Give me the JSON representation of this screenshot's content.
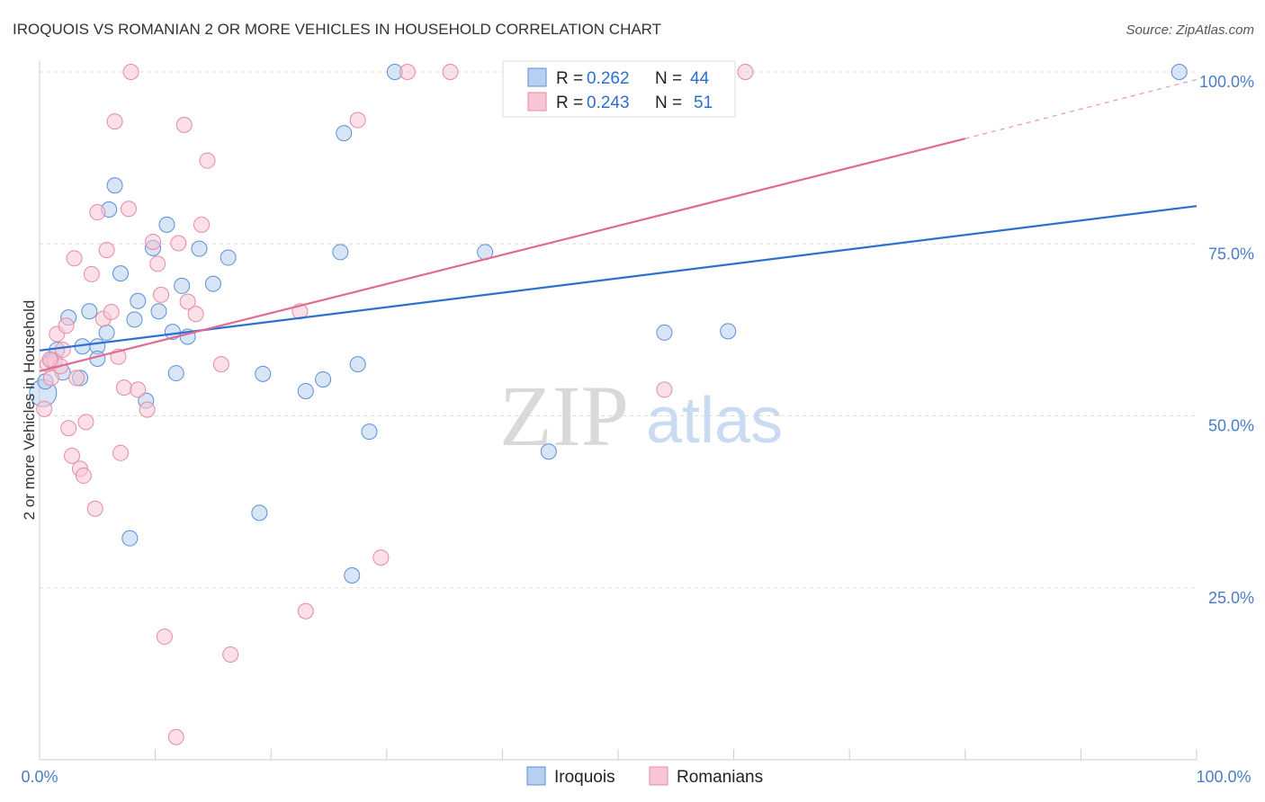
{
  "chart_data": {
    "type": "scatter",
    "title": "IROQUOIS VS ROMANIAN 2 OR MORE VEHICLES IN HOUSEHOLD CORRELATION CHART",
    "source": "Source: ZipAtlas.com",
    "xlabel": "",
    "ylabel": "2 or more Vehicles in Household",
    "xlim": [
      0,
      100
    ],
    "ylim": [
      0,
      104
    ],
    "x_tick_labels": [
      "0.0%",
      "100.0%"
    ],
    "y_ticks": [
      {
        "value": 25,
        "label": "25.0%"
      },
      {
        "value": 50,
        "label": "50.0%"
      },
      {
        "value": 75,
        "label": "75.0%"
      },
      {
        "value": 100,
        "label": "100.0%"
      }
    ],
    "watermark": {
      "zip": "ZIP",
      "atlas": "atlas"
    },
    "legend": [
      {
        "r_label": "R =",
        "r_value": "0.262",
        "n_label": "N =",
        "n_value": "44"
      },
      {
        "r_label": "R =",
        "r_value": "0.243",
        "n_label": "N =",
        "n_value": "51"
      }
    ],
    "series": [
      {
        "name": "Iroquois",
        "color": "#5b8fd6",
        "fill": "#b7cff0",
        "trend": {
          "x1": 0,
          "y1": 59.5,
          "x2": 100,
          "y2": 80.5,
          "color": "#2c6fd1"
        },
        "points": [
          [
            0.3,
            53.3
          ],
          [
            0.5,
            55
          ],
          [
            1,
            58
          ],
          [
            1.5,
            59.6
          ],
          [
            2,
            56.3
          ],
          [
            2.5,
            64.3
          ],
          [
            3.5,
            55.5
          ],
          [
            3.7,
            60.1
          ],
          [
            4.3,
            65.2
          ],
          [
            5,
            60.1
          ],
          [
            5,
            58.3
          ],
          [
            5.8,
            62.1
          ],
          [
            6,
            80
          ],
          [
            6.5,
            83.5
          ],
          [
            7,
            70.7
          ],
          [
            8.2,
            64
          ],
          [
            8.5,
            66.7
          ],
          [
            9.2,
            52.2
          ],
          [
            9.8,
            74.4
          ],
          [
            10.3,
            65.2
          ],
          [
            11,
            77.8
          ],
          [
            11.5,
            62.2
          ],
          [
            11.8,
            56.2
          ],
          [
            12.3,
            68.9
          ],
          [
            12.8,
            61.5
          ],
          [
            13.8,
            74.3
          ],
          [
            15,
            69.2
          ],
          [
            16.3,
            73
          ],
          [
            19,
            35.9
          ],
          [
            19.3,
            56.1
          ],
          [
            23,
            53.6
          ],
          [
            24.5,
            55.3
          ],
          [
            26,
            73.8
          ],
          [
            26.3,
            91.1
          ],
          [
            27,
            26.8
          ],
          [
            27.5,
            57.5
          ],
          [
            28.5,
            47.7
          ],
          [
            30.7,
            100
          ],
          [
            38.5,
            73.8
          ],
          [
            44,
            44.8
          ],
          [
            54,
            62.1
          ],
          [
            59.5,
            62.3
          ],
          [
            7.8,
            32.2
          ],
          [
            98.5,
            100
          ]
        ]
      },
      {
        "name": "Romanians",
        "color": "#e58aa6",
        "fill": "#f8c6d5",
        "trend": {
          "x1": 0,
          "y1": 56.5,
          "x2": 80,
          "y2": 90.3,
          "dash_x2": 100,
          "dash_y2": 98.9,
          "color": "#e06a92"
        },
        "points": [
          [
            0.4,
            51
          ],
          [
            0.7,
            57.5
          ],
          [
            1,
            55.5
          ],
          [
            1.3,
            58
          ],
          [
            1.5,
            61.9
          ],
          [
            2,
            59.6
          ],
          [
            2.3,
            63.1
          ],
          [
            2.5,
            48.2
          ],
          [
            2.8,
            44.2
          ],
          [
            3,
            72.9
          ],
          [
            3.5,
            42.3
          ],
          [
            3.8,
            41.3
          ],
          [
            4,
            49.1
          ],
          [
            4.5,
            70.6
          ],
          [
            4.8,
            36.5
          ],
          [
            5,
            79.6
          ],
          [
            5.5,
            64.1
          ],
          [
            5.8,
            74.1
          ],
          [
            6.2,
            65.1
          ],
          [
            6.5,
            92.8
          ],
          [
            6.8,
            58.6
          ],
          [
            7,
            44.6
          ],
          [
            7.3,
            54.1
          ],
          [
            7.7,
            80.1
          ],
          [
            7.9,
            100
          ],
          [
            8.5,
            53.8
          ],
          [
            9.3,
            50.9
          ],
          [
            9.8,
            75.3
          ],
          [
            10.2,
            72.1
          ],
          [
            10.5,
            67.6
          ],
          [
            10.8,
            17.9
          ],
          [
            11.8,
            3.3
          ],
          [
            12,
            75.1
          ],
          [
            12.8,
            66.6
          ],
          [
            12.5,
            92.3
          ],
          [
            13.5,
            64.8
          ],
          [
            14,
            77.8
          ],
          [
            14.5,
            87.1
          ],
          [
            15.7,
            57.5
          ],
          [
            16.5,
            15.3
          ],
          [
            22.5,
            65.2
          ],
          [
            23,
            21.6
          ],
          [
            27.5,
            93
          ],
          [
            29.5,
            29.4
          ],
          [
            31.8,
            100
          ],
          [
            35.5,
            100
          ],
          [
            54,
            53.8
          ],
          [
            61,
            100
          ],
          [
            3.2,
            55.5
          ],
          [
            1.8,
            57.2
          ],
          [
            0.9,
            58.2
          ]
        ]
      }
    ]
  }
}
